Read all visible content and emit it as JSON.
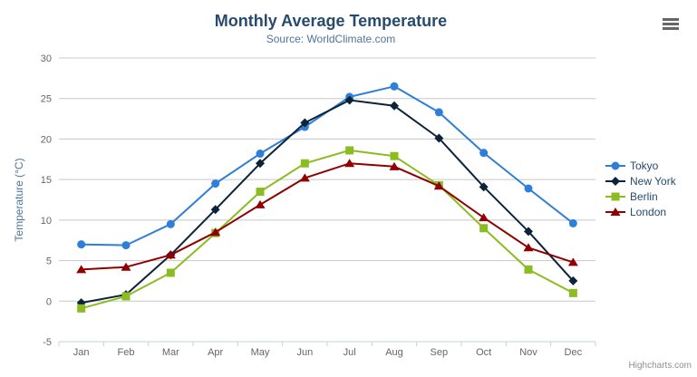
{
  "credit": {
    "label": "Highcharts.com"
  },
  "icons": {
    "menu": "hamburger-icon"
  },
  "chart_data": {
    "type": "line",
    "title": "Monthly Average Temperature",
    "subtitle": "Source: WorldClimate.com",
    "ylabel": "Temperature (°C)",
    "xlabel": "",
    "categories": [
      "Jan",
      "Feb",
      "Mar",
      "Apr",
      "May",
      "Jun",
      "Jul",
      "Aug",
      "Sep",
      "Oct",
      "Nov",
      "Dec"
    ],
    "ylim": [
      -5,
      30
    ],
    "ytick_step": 5,
    "grid": true,
    "legend_position": "right",
    "series": [
      {
        "name": "Tokyo",
        "color": "#2f7ed8",
        "marker": "circle",
        "values": [
          7.0,
          6.9,
          9.5,
          14.5,
          18.2,
          21.5,
          25.2,
          26.5,
          23.3,
          18.3,
          13.9,
          9.6
        ]
      },
      {
        "name": "New York",
        "color": "#0d233a",
        "marker": "diamond",
        "values": [
          -0.2,
          0.8,
          5.7,
          11.3,
          17.0,
          22.0,
          24.8,
          24.1,
          20.1,
          14.1,
          8.6,
          2.5
        ]
      },
      {
        "name": "Berlin",
        "color": "#8bbc21",
        "marker": "square",
        "values": [
          -0.9,
          0.6,
          3.5,
          8.4,
          13.5,
          17.0,
          18.6,
          17.9,
          14.3,
          9.0,
          3.9,
          1.0
        ]
      },
      {
        "name": "London",
        "color": "#910000",
        "marker": "triangle",
        "values": [
          3.9,
          4.2,
          5.7,
          8.5,
          11.9,
          15.2,
          17.0,
          16.6,
          14.2,
          10.3,
          6.6,
          4.8
        ]
      }
    ],
    "colors": {
      "title": "#274b6d",
      "subtitle": "#4d759e",
      "axis_labels": "#666666",
      "yaxis_title": "#4d759e",
      "grid": "#c8c8c8",
      "axis_line": "#c0d0e0",
      "legend_text": "#274b6d",
      "credit": "#909090"
    }
  }
}
